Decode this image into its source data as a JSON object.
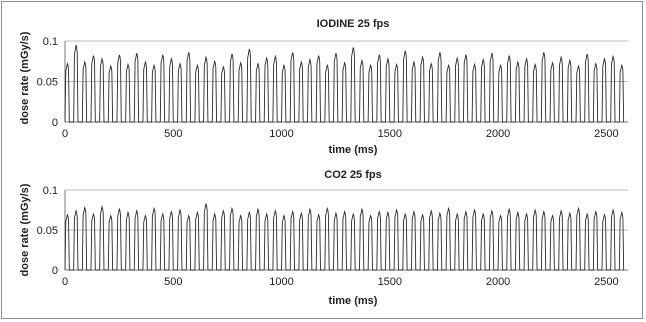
{
  "chart_data": [
    {
      "type": "line",
      "title": "IODINE 25 fps",
      "xlabel": "time (ms)",
      "ylabel": "dose rate (mGy/s)",
      "xlim": [
        0,
        2600
      ],
      "ylim": [
        0,
        0.1
      ],
      "xticks": [
        0,
        500,
        1000,
        1500,
        2000,
        2500
      ],
      "xtick_labels": [
        "0",
        "500",
        "1000",
        "1500",
        "2000",
        "2500"
      ],
      "yticks": [
        0,
        0.05,
        0.1
      ],
      "ytick_labels": [
        "0",
        "0.05",
        "0.1"
      ],
      "grid": "horizontal",
      "series": [
        {
          "pulse_period_ms": 40,
          "pulse_width_ms": 20,
          "x_end": 2575,
          "peaks": [
            0.072,
            0.095,
            0.074,
            0.082,
            0.078,
            0.069,
            0.083,
            0.071,
            0.085,
            0.074,
            0.07,
            0.083,
            0.078,
            0.072,
            0.086,
            0.07,
            0.08,
            0.075,
            0.068,
            0.084,
            0.073,
            0.09,
            0.072,
            0.079,
            0.081,
            0.07,
            0.086,
            0.074,
            0.077,
            0.082,
            0.07,
            0.085,
            0.073,
            0.092,
            0.076,
            0.07,
            0.083,
            0.078,
            0.071,
            0.088,
            0.074,
            0.08,
            0.072,
            0.086,
            0.07,
            0.079,
            0.083,
            0.071,
            0.077,
            0.085,
            0.07,
            0.082,
            0.074,
            0.078,
            0.071,
            0.086,
            0.073,
            0.08,
            0.076,
            0.069,
            0.084,
            0.072,
            0.078,
            0.081,
            0.07,
            0.083
          ]
        }
      ]
    },
    {
      "type": "line",
      "title": "CO2 25 fps",
      "xlabel": "time (ms)",
      "ylabel": "dose rate (mGy/s)",
      "xlim": [
        0,
        2600
      ],
      "ylim": [
        0,
        0.1
      ],
      "xticks": [
        0,
        500,
        1000,
        1500,
        2000,
        2500
      ],
      "xtick_labels": [
        "0",
        "500",
        "1000",
        "1500",
        "2000",
        "2500"
      ],
      "yticks": [
        0,
        0.05,
        0.1
      ],
      "ytick_labels": [
        "0",
        "0.05",
        "0.1"
      ],
      "grid": "horizontal",
      "series": [
        {
          "pulse_period_ms": 40,
          "pulse_width_ms": 20,
          "x_end": 2575,
          "peaks": [
            0.069,
            0.074,
            0.078,
            0.07,
            0.079,
            0.068,
            0.076,
            0.072,
            0.074,
            0.068,
            0.077,
            0.07,
            0.073,
            0.075,
            0.068,
            0.072,
            0.083,
            0.07,
            0.074,
            0.077,
            0.068,
            0.072,
            0.076,
            0.07,
            0.074,
            0.068,
            0.073,
            0.071,
            0.076,
            0.069,
            0.077,
            0.071,
            0.073,
            0.07,
            0.076,
            0.068,
            0.073,
            0.072,
            0.075,
            0.07,
            0.073,
            0.069,
            0.074,
            0.071,
            0.077,
            0.07,
            0.073,
            0.075,
            0.07,
            0.074,
            0.068,
            0.076,
            0.072,
            0.07,
            0.075,
            0.073,
            0.068,
            0.074,
            0.071,
            0.077,
            0.07,
            0.073,
            0.069,
            0.075,
            0.072,
            0.07
          ]
        }
      ]
    }
  ]
}
